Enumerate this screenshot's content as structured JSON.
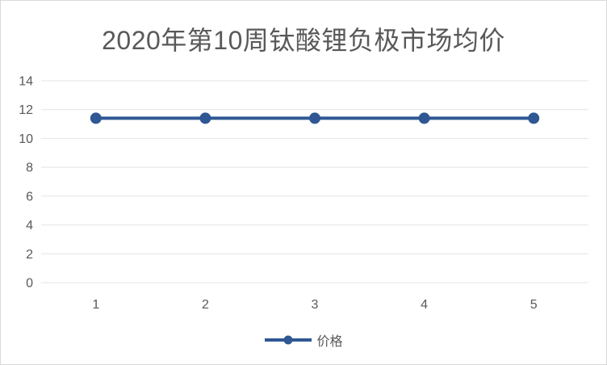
{
  "title": "2020年第10周钛酸锂负极市场均价",
  "legend": {
    "label": "价格"
  },
  "colors": {
    "series": "#2f5794",
    "gridline": "#e4e4e4",
    "title_text": "#595959",
    "axis_text": "#595959",
    "border": "#d9d9d9",
    "background": "#ffffff"
  },
  "chart_data": {
    "type": "line",
    "title": "2020年第10周钛酸锂负极市场均价",
    "categories": [
      "1",
      "2",
      "3",
      "4",
      "5"
    ],
    "series": [
      {
        "name": "价格",
        "values": [
          11.4,
          11.4,
          11.4,
          11.4,
          11.4
        ]
      }
    ],
    "xlabel": "",
    "ylabel": "",
    "ylim": [
      0,
      14
    ],
    "ytick_step": 2,
    "yticks": [
      0,
      2,
      4,
      6,
      8,
      10,
      12,
      14
    ],
    "grid": true,
    "legend_position": "bottom",
    "marker": "circle",
    "line_width": 4,
    "marker_radius": 7
  }
}
